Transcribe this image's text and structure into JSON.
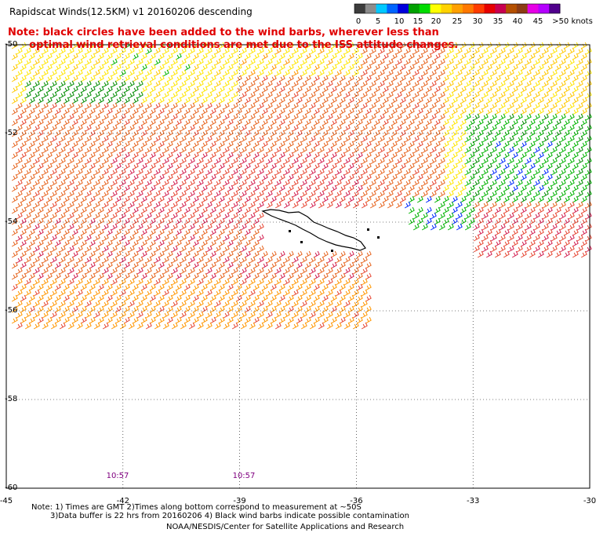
{
  "title": "Rapidscat Winds(12.5KM) v1 20160206 descending",
  "note_lines": [
    "Note: black circles have been added to the wind barbs, wherever less than",
    "      optimal wind retrieval conditions are met due to the ISS attitude changes."
  ],
  "legend": {
    "labels": [
      "0",
      "5",
      "10",
      "15",
      "20",
      "25",
      "30",
      "35",
      "40",
      "45",
      ">50 knots"
    ],
    "colors": [
      "#3c3c3c",
      "#8c8c8c",
      "#00c8ff",
      "#0064ff",
      "#0000dc",
      "#00a000",
      "#00dc00",
      "#ffff00",
      "#ffd200",
      "#ffa000",
      "#ff7800",
      "#ff3c00",
      "#e60000",
      "#c80050",
      "#b45000",
      "#8c3c14",
      "#e600e6",
      "#b400ff",
      "#50008c"
    ]
  },
  "axes": {
    "lon_labels": [
      "-45",
      "-42",
      "-39",
      "-36",
      "-33",
      "-30"
    ],
    "lat_labels": [
      "-50",
      "-52",
      "-54",
      "-56",
      "-58",
      "-60"
    ]
  },
  "time_labels": [
    "10:57",
    "10:57"
  ],
  "footer": {
    "line1": "Note: 1) Times are GMT 2)Times along bottom correspond to measurement at ~50S",
    "line2": "3)Data buffer is 22 hrs from 20160206 4) Black wind barbs indicate possible contamination",
    "line3": "NOAA/NESDIS/Center for Satellite Applications and Research"
  },
  "map_colors": {
    "yellow": "#ffe600",
    "gold": "#ffc800",
    "orange": "#ff9600",
    "dark_orange": "#e6641e",
    "red_orange": "#e64632",
    "crimson": "#d21e50",
    "green": "#00b400",
    "dark_green": "#008c00",
    "blue": "#0028ff",
    "magenta": "#d200d2",
    "coast": "#000000"
  }
}
